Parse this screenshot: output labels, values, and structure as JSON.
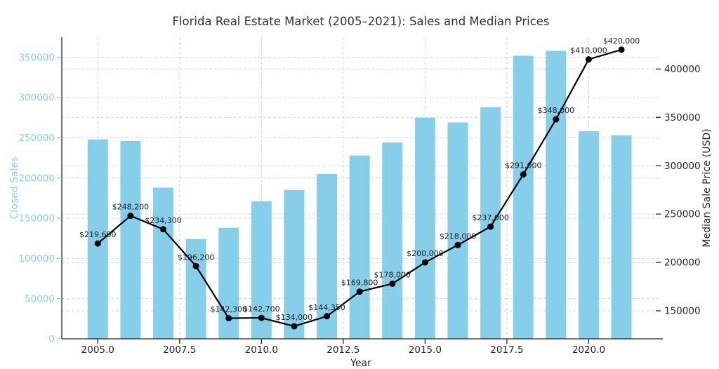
{
  "chart_data": {
    "type": "bar",
    "title": "Florida Real Estate Market (2005–2021): Sales and Median Prices",
    "xlabel": "Year",
    "x": [
      2005,
      2006,
      2007,
      2008,
      2009,
      2010,
      2011,
      2012,
      2013,
      2014,
      2015,
      2016,
      2017,
      2018,
      2019,
      2020,
      2021
    ],
    "series": [
      {
        "name": "Closed Sales",
        "type": "bar",
        "axis": "left",
        "color": "#87CEEB",
        "values": [
          248000,
          246000,
          188000,
          124000,
          138000,
          171000,
          185000,
          205000,
          228000,
          244000,
          275000,
          269000,
          288000,
          352000,
          358000,
          258000,
          253000
        ]
      },
      {
        "name": "Median Sale Price",
        "type": "line",
        "axis": "right",
        "color": "#000000",
        "values": [
          219600,
          248200,
          234300,
          196200,
          142300,
          142700,
          134000,
          144350,
          169800,
          178000,
          200000,
          218000,
          237000,
          291000,
          348000,
          410000,
          420000
        ],
        "point_labels": [
          "$219,600",
          "$248,200",
          "$234,300",
          "$196,200",
          "$142,300",
          "$142,700",
          "$134,000",
          "$144,350",
          "$169,800",
          "$178,000",
          "$200,000",
          "$218,000",
          "$237,000",
          "$291,000",
          "$348,000",
          "$410,000",
          "$420,000"
        ]
      }
    ],
    "left_axis": {
      "label": "Closed Sales",
      "color": "#87CEEB",
      "ticks": [
        0,
        50000,
        100000,
        150000,
        200000,
        250000,
        300000,
        350000
      ],
      "range": [
        0,
        375000
      ]
    },
    "right_axis": {
      "label": "Median Sale Price (USD)",
      "color": "#262626",
      "ticks": [
        150000,
        200000,
        250000,
        300000,
        350000,
        400000
      ],
      "range": [
        121000,
        432900
      ]
    },
    "x_axis": {
      "label": "Year",
      "ticks": [
        2005.0,
        2007.5,
        2010.0,
        2012.5,
        2015.0,
        2017.5,
        2020.0
      ],
      "tick_labels": [
        "2005.0",
        "2007.5",
        "2010.0",
        "2012.5",
        "2015.0",
        "2017.5",
        "2020.0"
      ],
      "range": [
        2003.9,
        2022.2
      ]
    },
    "grid": {
      "on": true,
      "color": "#d4d4d4",
      "dash": "4 3"
    },
    "spine_color": "#262626",
    "label_color": "#1c1c1c"
  }
}
